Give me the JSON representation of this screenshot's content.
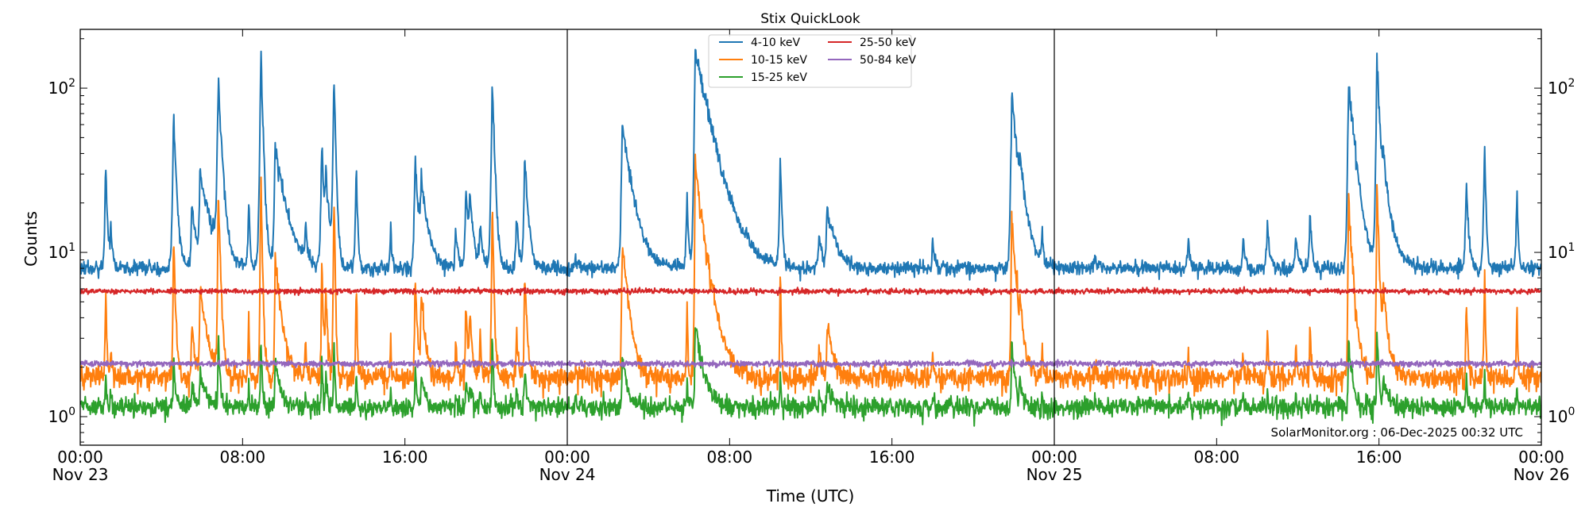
{
  "chart_data": {
    "type": "line",
    "title": "Stix QuickLook",
    "xlabel": "Time (UTC)",
    "ylabel": "Counts",
    "yscale": "log",
    "ylim": [
      0.67,
      228
    ],
    "xlim_hours_from_start": [
      0,
      72
    ],
    "x_ticks": [
      {
        "label": "00:00",
        "sub": "Nov 23",
        "hour": 0
      },
      {
        "label": "08:00",
        "sub": "",
        "hour": 8
      },
      {
        "label": "16:00",
        "sub": "",
        "hour": 16
      },
      {
        "label": "00:00",
        "sub": "Nov 24",
        "hour": 24
      },
      {
        "label": "08:00",
        "sub": "",
        "hour": 32
      },
      {
        "label": "16:00",
        "sub": "",
        "hour": 40
      },
      {
        "label": "00:00",
        "sub": "Nov 25",
        "hour": 48
      },
      {
        "label": "08:00",
        "sub": "",
        "hour": 56
      },
      {
        "label": "16:00",
        "sub": "",
        "hour": 64
      },
      {
        "label": "00:00",
        "sub": "Nov 26",
        "hour": 72
      }
    ],
    "day_boundaries_hours": [
      24,
      48
    ],
    "y_ticks": [
      {
        "base": "10",
        "exp": "0",
        "value": 1
      },
      {
        "base": "10",
        "exp": "1",
        "value": 10
      },
      {
        "base": "10",
        "exp": "2",
        "value": 100
      }
    ],
    "legend_placement": "top-center",
    "series": [
      {
        "name": "4-10 keV",
        "color": "#1f77b4",
        "baseline": 8.0
      },
      {
        "name": "10-15 keV",
        "color": "#ff7f0e",
        "baseline": 1.8
      },
      {
        "name": "15-25 keV",
        "color": "#2ca02c",
        "baseline": 1.15
      },
      {
        "name": "25-50 keV",
        "color": "#d62728",
        "baseline": 5.8
      },
      {
        "name": "50-84 keV",
        "color": "#9467bd",
        "baseline": 2.1
      }
    ],
    "flares_4_10keV": [
      {
        "hour": 1.25,
        "peak": 32,
        "decay_h": 0.08
      },
      {
        "hour": 1.5,
        "peak": 13,
        "decay_h": 0.1
      },
      {
        "hour": 4.6,
        "peak": 68,
        "decay_h": 0.12
      },
      {
        "hour": 5.5,
        "peak": 20,
        "decay_h": 0.2
      },
      {
        "hour": 5.9,
        "peak": 30,
        "decay_h": 0.5
      },
      {
        "hour": 6.8,
        "peak": 120,
        "decay_h": 0.15
      },
      {
        "hour": 8.3,
        "peak": 20,
        "decay_h": 0.06
      },
      {
        "hour": 8.9,
        "peak": 155,
        "decay_h": 0.1
      },
      {
        "hour": 9.6,
        "peak": 45,
        "decay_h": 0.45
      },
      {
        "hour": 11.1,
        "peak": 14,
        "decay_h": 0.08
      },
      {
        "hour": 11.9,
        "peak": 46,
        "decay_h": 0.1
      },
      {
        "hour": 12.1,
        "peak": 28,
        "decay_h": 0.15
      },
      {
        "hour": 12.5,
        "peak": 120,
        "decay_h": 0.08
      },
      {
        "hour": 13.6,
        "peak": 35,
        "decay_h": 0.06
      },
      {
        "hour": 15.3,
        "peak": 14,
        "decay_h": 0.06
      },
      {
        "hour": 16.5,
        "peak": 37,
        "decay_h": 0.15
      },
      {
        "hour": 16.8,
        "peak": 26,
        "decay_h": 0.3
      },
      {
        "hour": 18.5,
        "peak": 14,
        "decay_h": 0.1
      },
      {
        "hour": 19.0,
        "peak": 24,
        "decay_h": 0.15
      },
      {
        "hour": 19.2,
        "peak": 20,
        "decay_h": 0.15
      },
      {
        "hour": 19.7,
        "peak": 15,
        "decay_h": 0.1
      },
      {
        "hour": 20.3,
        "peak": 115,
        "decay_h": 0.1
      },
      {
        "hour": 21.5,
        "peak": 17,
        "decay_h": 0.1
      },
      {
        "hour": 21.9,
        "peak": 38,
        "decay_h": 0.15
      },
      {
        "hour": 24.4,
        "peak": 10,
        "decay_h": 0.1
      },
      {
        "hour": 26.7,
        "peak": 57,
        "decay_h": 0.45
      },
      {
        "hour": 29.9,
        "peak": 24,
        "decay_h": 0.06
      },
      {
        "hour": 30.3,
        "peak": 170,
        "decay_h": 0.7
      },
      {
        "hour": 32.8,
        "peak": 9.5,
        "decay_h": 0.1
      },
      {
        "hour": 34.5,
        "peak": 41,
        "decay_h": 0.06
      },
      {
        "hour": 36.4,
        "peak": 13,
        "decay_h": 0.15
      },
      {
        "hour": 36.8,
        "peak": 18,
        "decay_h": 0.4
      },
      {
        "hour": 42.0,
        "peak": 12,
        "decay_h": 0.1
      },
      {
        "hour": 45.9,
        "peak": 88,
        "decay_h": 0.3
      },
      {
        "hour": 46.3,
        "peak": 19,
        "decay_h": 0.3
      },
      {
        "hour": 47.4,
        "peak": 14,
        "decay_h": 0.06
      },
      {
        "hour": 50.0,
        "peak": 10,
        "decay_h": 0.1
      },
      {
        "hour": 54.6,
        "peak": 12,
        "decay_h": 0.1
      },
      {
        "hour": 57.3,
        "peak": 12,
        "decay_h": 0.1
      },
      {
        "hour": 58.5,
        "peak": 16,
        "decay_h": 0.1
      },
      {
        "hour": 59.9,
        "peak": 13,
        "decay_h": 0.1
      },
      {
        "hour": 60.6,
        "peak": 18,
        "decay_h": 0.08
      },
      {
        "hour": 62.5,
        "peak": 110,
        "decay_h": 0.3
      },
      {
        "hour": 63.9,
        "peak": 145,
        "decay_h": 0.15
      },
      {
        "hour": 64.2,
        "peak": 26,
        "decay_h": 0.4
      },
      {
        "hour": 68.3,
        "peak": 27,
        "decay_h": 0.1
      },
      {
        "hour": 69.2,
        "peak": 46,
        "decay_h": 0.06
      },
      {
        "hour": 70.8,
        "peak": 25,
        "decay_h": 0.05
      }
    ],
    "annotation": "SolarMonitor.org : 06-Dec-2025 00:32 UTC",
    "grid": false
  }
}
